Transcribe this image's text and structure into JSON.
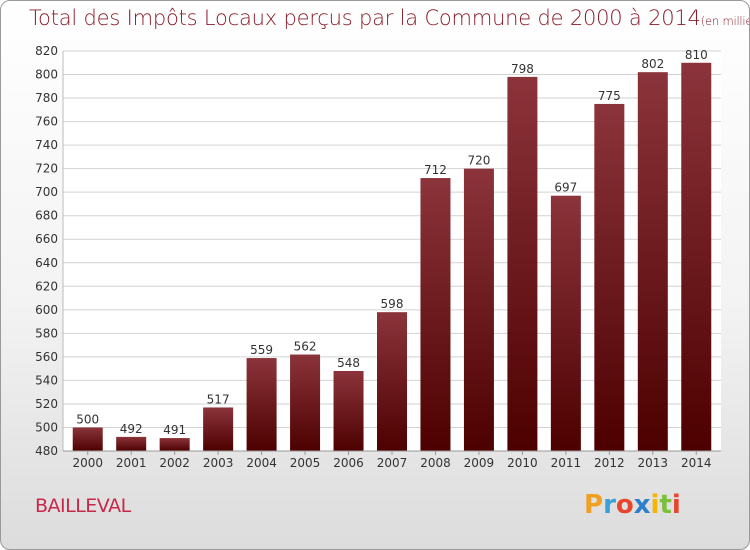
{
  "header": {
    "title": "Total des Impôts Locaux perçus par la Commune de 2000 à 2014",
    "unit": "(en milliers d'€)"
  },
  "commune": "BAILLEVAL",
  "logo": {
    "text": "Proxiti",
    "letters": [
      "P",
      "r",
      "o",
      "x",
      "i",
      "t",
      "i"
    ],
    "colors": [
      "#f0a020",
      "#3aa0d8",
      "#e8452c",
      "#2f7ec9",
      "#f7b500",
      "#7bbf3a",
      "#e8452c"
    ]
  },
  "chart_data": {
    "type": "bar",
    "title": "Total des Impôts Locaux perçus par la Commune de 2000 à 2014",
    "xlabel": "",
    "ylabel": "en milliers d'€",
    "categories": [
      "2000",
      "2001",
      "2002",
      "2003",
      "2004",
      "2005",
      "2006",
      "2007",
      "2008",
      "2009",
      "2010",
      "2011",
      "2012",
      "2013",
      "2014"
    ],
    "values": [
      500,
      492,
      491,
      517,
      559,
      562,
      548,
      598,
      712,
      720,
      798,
      697,
      775,
      802,
      810
    ],
    "ylim": [
      480,
      820
    ],
    "yticks": [
      480,
      500,
      520,
      540,
      560,
      580,
      600,
      620,
      640,
      660,
      680,
      700,
      720,
      740,
      760,
      780,
      800,
      820
    ],
    "grid": true,
    "colors": {
      "bar_top": "#8b343b",
      "bar_bottom": "#4d0000",
      "grid": "#d2d2d2",
      "axis_text": "#333333"
    }
  }
}
